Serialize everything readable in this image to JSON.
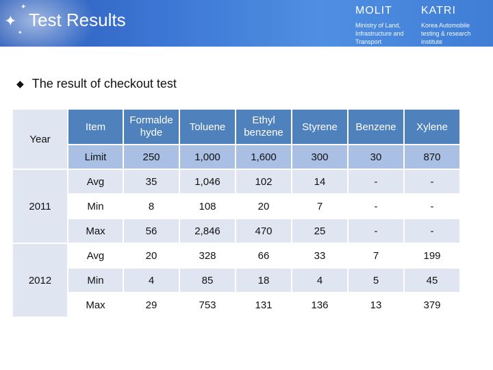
{
  "header": {
    "title": "Test Results",
    "orgs": [
      {
        "name": "MOLIT",
        "desc": [
          "Ministry of Land,",
          "Infrastructure and",
          "Transport"
        ]
      },
      {
        "name": "KATRI",
        "desc": [
          "Korea Automobile",
          "testing & research",
          "institute"
        ]
      }
    ]
  },
  "section": {
    "bullet_icon": "diamond-bullet-icon",
    "heading": "The result of checkout test"
  },
  "table": {
    "year_header": "Year",
    "columns": [
      "Item",
      "Formalde hyde",
      "Toluene",
      "Ethyl benzene",
      "Styrene",
      "Benzene",
      "Xylene"
    ],
    "limit": [
      "Limit",
      "250",
      "1,000",
      "1,600",
      "300",
      "30",
      "870"
    ],
    "groups": [
      {
        "year": "2011",
        "rows": [
          [
            "Avg",
            "35",
            "1,046",
            "102",
            "14",
            "-",
            "-"
          ],
          [
            "Min",
            "8",
            "108",
            "20",
            "7",
            "-",
            "-"
          ],
          [
            "Max",
            "56",
            "2,846",
            "470",
            "25",
            "-",
            "-"
          ]
        ]
      },
      {
        "year": "2012",
        "rows": [
          [
            "Avg",
            "20",
            "328",
            "66",
            "33",
            "7",
            "199"
          ],
          [
            "Min",
            "4",
            "85",
            "18",
            "4",
            "5",
            "45"
          ],
          [
            "Max",
            "29",
            "753",
            "131",
            "136",
            "13",
            "379"
          ]
        ]
      }
    ]
  }
}
